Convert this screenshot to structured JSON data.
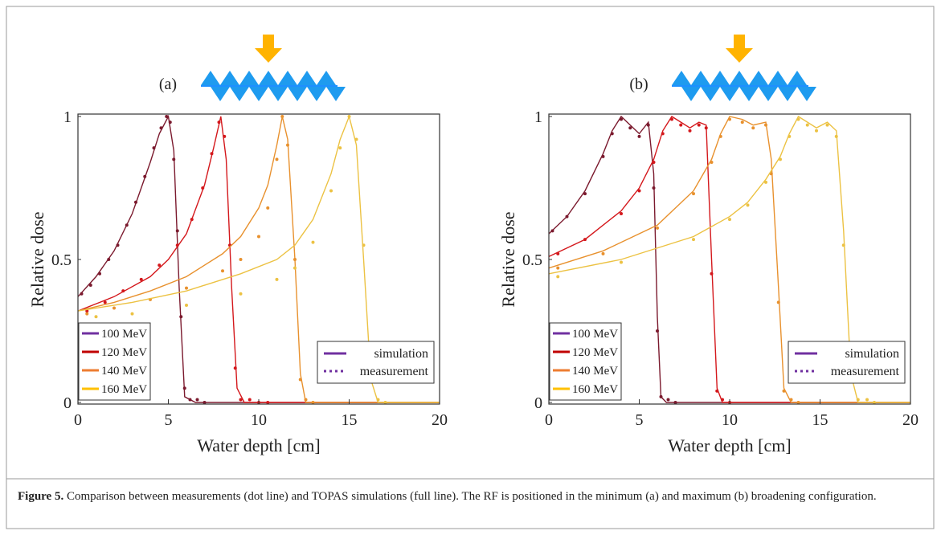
{
  "chart_data": [
    {
      "type": "line",
      "label": "(a)",
      "x_label": "Water depth [cm]",
      "y_label": "Relative dose",
      "xlim": [
        0,
        20
      ],
      "xticks": [
        0,
        5,
        10,
        15,
        20
      ],
      "ylim": [
        0,
        1
      ],
      "yticks": [
        0,
        0.5,
        1
      ],
      "line_styles": [
        "simulation",
        "measurement"
      ],
      "line_style_color": "#7030a0",
      "series": [
        {
          "name": "100 MeV",
          "legend_color": "#7030a0",
          "color": "#7b1a2e",
          "simulation": {
            "x": [
              0,
              1,
              2,
              3,
              4,
              4.5,
              5,
              5.3,
              5.6,
              5.9,
              6.5,
              20
            ],
            "values": [
              0.37,
              0.44,
              0.53,
              0.66,
              0.84,
              0.94,
              1,
              0.88,
              0.4,
              0.02,
              0,
              0
            ]
          },
          "measurement": {
            "x": [
              0.2,
              0.7,
              1.2,
              1.7,
              2.2,
              2.7,
              3.2,
              3.7,
              4.2,
              4.6,
              4.9,
              5.1,
              5.3,
              5.5,
              5.7,
              5.9,
              6.2,
              6.6,
              7
            ],
            "values": [
              0.38,
              0.41,
              0.45,
              0.5,
              0.55,
              0.62,
              0.7,
              0.79,
              0.89,
              0.96,
              1,
              0.98,
              0.85,
              0.6,
              0.3,
              0.05,
              0.01,
              0.01,
              0
            ]
          }
        },
        {
          "name": "120 MeV",
          "legend_color": "#c00000",
          "color": "#d4181c",
          "simulation": {
            "x": [
              0,
              2,
              4,
              5,
              6,
              7,
              7.5,
              7.9,
              8.2,
              8.5,
              8.8,
              9.2,
              20
            ],
            "values": [
              0.32,
              0.37,
              0.44,
              0.5,
              0.59,
              0.76,
              0.89,
              1,
              0.85,
              0.4,
              0.05,
              0,
              0
            ]
          },
          "measurement": {
            "x": [
              0.5,
              1.5,
              2.5,
              3.5,
              4.5,
              5.5,
              6.3,
              6.9,
              7.4,
              7.8,
              8.1,
              8.4,
              8.7,
              9,
              9.5,
              10,
              10.5
            ],
            "values": [
              0.32,
              0.35,
              0.39,
              0.43,
              0.48,
              0.55,
              0.64,
              0.75,
              0.87,
              0.98,
              0.93,
              0.55,
              0.12,
              0.01,
              0.01,
              0,
              0
            ]
          }
        },
        {
          "name": "140 MeV",
          "legend_color": "#ed7d31",
          "color": "#e8912e",
          "simulation": {
            "x": [
              0,
              2,
              4,
              6,
              8,
              9,
              10,
              10.5,
              11,
              11.3,
              11.6,
              12,
              12.3,
              12.6,
              20
            ],
            "values": [
              0.32,
              0.35,
              0.39,
              0.44,
              0.52,
              0.58,
              0.68,
              0.76,
              0.9,
              1,
              0.92,
              0.5,
              0.1,
              0,
              0
            ]
          },
          "measurement": {
            "x": [
              0.5,
              2,
              4,
              6,
              8,
              9,
              10,
              10.5,
              11,
              11.3,
              11.6,
              12,
              12.3,
              12.6,
              13
            ],
            "values": [
              0.31,
              0.33,
              0.36,
              0.4,
              0.46,
              0.5,
              0.58,
              0.68,
              0.85,
              1,
              0.9,
              0.5,
              0.08,
              0.01,
              0
            ]
          }
        },
        {
          "name": "160 MeV",
          "legend_color": "#ffc000",
          "color": "#ecc243",
          "simulation": {
            "x": [
              0,
              3,
              6,
              9,
              11,
              12,
              13,
              14,
              14.5,
              15,
              15.4,
              15.8,
              16.2,
              16.6,
              20
            ],
            "values": [
              0.32,
              0.35,
              0.39,
              0.45,
              0.5,
              0.55,
              0.64,
              0.8,
              0.92,
              1,
              0.9,
              0.5,
              0.08,
              0,
              0
            ]
          },
          "measurement": {
            "x": [
              1,
              3,
              6,
              9,
              11,
              12,
              13,
              14,
              14.5,
              15,
              15.4,
              15.8,
              16.2,
              16.6,
              17
            ],
            "values": [
              0.3,
              0.31,
              0.34,
              0.38,
              0.43,
              0.47,
              0.56,
              0.74,
              0.89,
              1,
              0.92,
              0.55,
              0.1,
              0.01,
              0
            ]
          }
        }
      ]
    },
    {
      "type": "line",
      "label": "(b)",
      "x_label": "Water depth [cm]",
      "y_label": "Relative dose",
      "xlim": [
        0,
        20
      ],
      "xticks": [
        0,
        5,
        10,
        15,
        20
      ],
      "ylim": [
        0,
        1
      ],
      "yticks": [
        0,
        0.5,
        1
      ],
      "line_styles": [
        "simulation",
        "measurement"
      ],
      "line_style_color": "#7030a0",
      "series": [
        {
          "name": "100 MeV",
          "legend_color": "#7030a0",
          "color": "#7b1a2e",
          "simulation": {
            "x": [
              0,
              1,
              2,
              3,
              3.5,
              4,
              4.5,
              5,
              5.5,
              5.8,
              6,
              6.2,
              6.5,
              20
            ],
            "values": [
              0.59,
              0.65,
              0.74,
              0.87,
              0.95,
              1,
              0.97,
              0.94,
              0.98,
              0.8,
              0.3,
              0.02,
              0,
              0
            ]
          },
          "measurement": {
            "x": [
              0.2,
              1,
              2,
              3,
              3.5,
              4,
              4.5,
              5,
              5.5,
              5.8,
              6,
              6.2,
              6.6,
              7
            ],
            "values": [
              0.6,
              0.65,
              0.73,
              0.86,
              0.94,
              0.99,
              0.96,
              0.93,
              0.97,
              0.75,
              0.25,
              0.02,
              0.01,
              0
            ]
          }
        },
        {
          "name": "120 MeV",
          "legend_color": "#c00000",
          "color": "#d4181c",
          "simulation": {
            "x": [
              0,
              2,
              4,
              5,
              5.8,
              6.3,
              6.8,
              7.3,
              7.8,
              8.3,
              8.7,
              9,
              9.3,
              9.6,
              20
            ],
            "values": [
              0.51,
              0.57,
              0.67,
              0.75,
              0.85,
              0.95,
              1,
              0.98,
              0.96,
              0.98,
              0.97,
              0.5,
              0.05,
              0,
              0
            ]
          },
          "measurement": {
            "x": [
              0.5,
              2,
              4,
              5,
              5.8,
              6.3,
              6.8,
              7.3,
              7.8,
              8.3,
              8.7,
              9,
              9.3,
              9.6,
              10
            ],
            "values": [
              0.52,
              0.57,
              0.66,
              0.74,
              0.84,
              0.94,
              0.99,
              0.97,
              0.95,
              0.97,
              0.96,
              0.45,
              0.04,
              0.01,
              0
            ]
          }
        },
        {
          "name": "140 MeV",
          "legend_color": "#ed7d31",
          "color": "#e8912e",
          "simulation": {
            "x": [
              0,
              3,
              6,
              8,
              9,
              9.5,
              10,
              10.7,
              11.3,
              12,
              12.3,
              12.7,
              13,
              13.4,
              20
            ],
            "values": [
              0.47,
              0.53,
              0.62,
              0.74,
              0.85,
              0.94,
              1,
              0.99,
              0.97,
              0.98,
              0.85,
              0.4,
              0.05,
              0,
              0
            ]
          },
          "measurement": {
            "x": [
              0.5,
              3,
              6,
              8,
              9,
              9.5,
              10,
              10.7,
              11.3,
              12,
              12.3,
              12.7,
              13,
              13.4,
              13.8
            ],
            "values": [
              0.47,
              0.52,
              0.61,
              0.73,
              0.84,
              0.93,
              0.99,
              0.98,
              0.96,
              0.97,
              0.8,
              0.35,
              0.04,
              0.01,
              0
            ]
          }
        },
        {
          "name": "160 MeV",
          "legend_color": "#ffc000",
          "color": "#ecc243",
          "simulation": {
            "x": [
              0,
              4,
              8,
              10,
              11,
              12,
              12.8,
              13.3,
              13.8,
              14.3,
              14.8,
              15.4,
              15.9,
              16.3,
              16.7,
              17.1,
              20
            ],
            "values": [
              0.45,
              0.5,
              0.58,
              0.65,
              0.7,
              0.78,
              0.86,
              0.94,
              1,
              0.98,
              0.96,
              0.98,
              0.95,
              0.6,
              0.1,
              0,
              0
            ]
          },
          "measurement": {
            "x": [
              0.5,
              4,
              8,
              10,
              11,
              12,
              12.8,
              13.3,
              13.8,
              14.3,
              14.8,
              15.4,
              15.9,
              16.3,
              16.7,
              17.1,
              17.6,
              18
            ],
            "values": [
              0.44,
              0.49,
              0.57,
              0.64,
              0.69,
              0.77,
              0.85,
              0.93,
              0.99,
              0.97,
              0.95,
              0.97,
              0.93,
              0.55,
              0.08,
              0.01,
              0.01,
              0
            ]
          }
        }
      ]
    }
  ],
  "caption": {
    "label": "Figure 5.",
    "text": " Comparison between measurements (dot line) and TOPAS simulations (full line). The RF is positioned in the minimum (a) and maximum (b) broadening configuration."
  }
}
